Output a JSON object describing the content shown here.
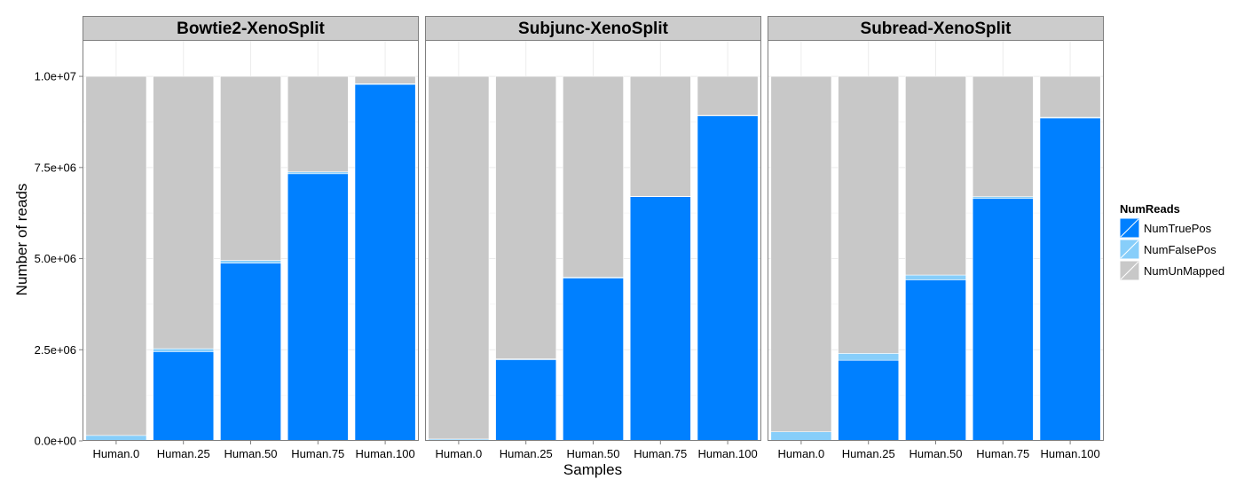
{
  "chart_data": {
    "type": "bar",
    "stacked": true,
    "xlabel": "Samples",
    "ylabel": "Number of reads",
    "ylim": [
      0,
      11000000
    ],
    "yticks": [
      0,
      2500000,
      5000000,
      7500000,
      10000000
    ],
    "ytick_labels": [
      "0.0e+00",
      "2.5e+06",
      "5.0e+06",
      "7.5e+06",
      "1.0e+07"
    ],
    "grid": true,
    "legend": {
      "title": "NumReads",
      "position": "right",
      "entries": [
        "NumTruePos",
        "NumFalsePos",
        "NumUnMapped"
      ]
    },
    "colors": {
      "NumTruePos": "#0080ff",
      "NumFalsePos": "#87cefa",
      "NumUnMapped": "#c8c8c8"
    },
    "categories": [
      "Human.0",
      "Human.25",
      "Human.50",
      "Human.75",
      "Human.100"
    ],
    "panels": [
      {
        "title": "Bowtie2-XenoSplit",
        "series": [
          {
            "name": "NumTruePos",
            "values": [
              0,
              2450000,
              4880000,
              7330000,
              9780000
            ]
          },
          {
            "name": "NumFalsePos",
            "values": [
              150000,
              80000,
              70000,
              50000,
              20000
            ]
          },
          {
            "name": "NumUnMapped",
            "values": [
              9850000,
              7470000,
              5050000,
              2620000,
              200000
            ]
          }
        ]
      },
      {
        "title": "Subjunc-XenoSplit",
        "series": [
          {
            "name": "NumTruePos",
            "values": [
              0,
              2230000,
              4470000,
              6700000,
              8920000
            ]
          },
          {
            "name": "NumFalsePos",
            "values": [
              50000,
              20000,
              20000,
              10000,
              10000
            ]
          },
          {
            "name": "NumUnMapped",
            "values": [
              9950000,
              7750000,
              5510000,
              3290000,
              1070000
            ]
          }
        ]
      },
      {
        "title": "Subread-XenoSplit",
        "series": [
          {
            "name": "NumTruePos",
            "values": [
              0,
              2210000,
              4420000,
              6650000,
              8860000
            ]
          },
          {
            "name": "NumFalsePos",
            "values": [
              250000,
              190000,
              130000,
              50000,
              20000
            ]
          },
          {
            "name": "NumUnMapped",
            "values": [
              9750000,
              7600000,
              5450000,
              3300000,
              1120000
            ]
          }
        ]
      }
    ]
  }
}
